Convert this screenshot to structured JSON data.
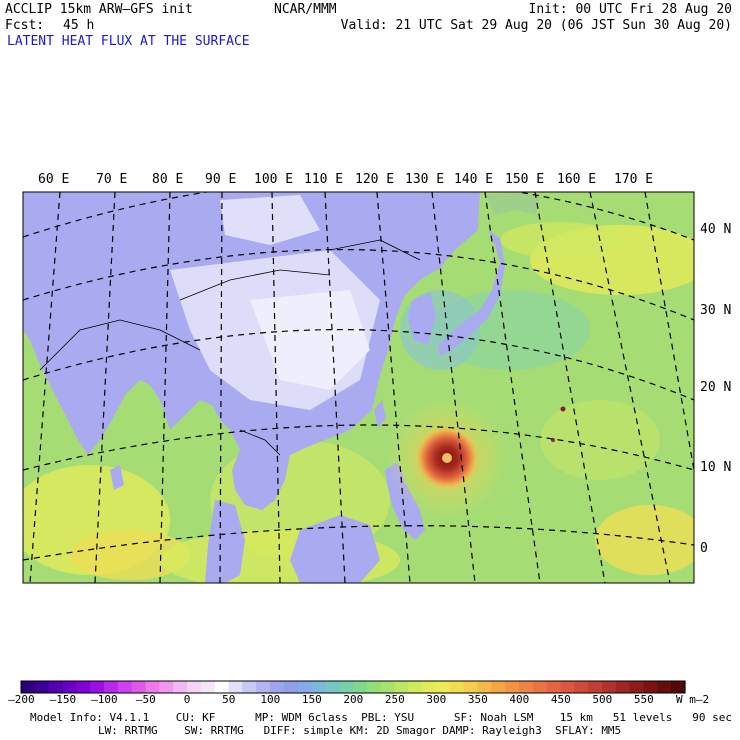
{
  "header": {
    "model": "ACCLIP 15km ARW–GFS init",
    "fcst_label": "Fcst:",
    "fcst_value": "45 h",
    "org": "NCAR/MMM",
    "init": "Init: 00 UTC Fri 28 Aug 20",
    "valid": "Valid: 21 UTC Sat 29 Aug 20 (06 JST Sun 30 Aug 20)",
    "field": "LATENT HEAT FLUX AT THE SURFACE"
  },
  "map": {
    "lon_labels": [
      "60 E",
      "70 E",
      "80 E",
      "90 E",
      "100 E",
      "110 E",
      "120 E",
      "130 E",
      "140 E",
      "150 E",
      "160 E",
      "170 E"
    ],
    "lat_labels": [
      "40 N",
      "30 N",
      "20 N",
      "10 N",
      "0"
    ]
  },
  "colorbar": {
    "tick_labels": [
      "–200",
      "–150",
      "–100",
      "–50",
      "0",
      "50",
      "100",
      "150",
      "200",
      "250",
      "300",
      "350",
      "400",
      "450",
      "500",
      "550"
    ],
    "units": "W m–2",
    "colors": [
      "#2a0077",
      "#3d0094",
      "#5300ad",
      "#6a00c4",
      "#8000d8",
      "#9a10e4",
      "#b828ec",
      "#d040f0",
      "#e058e8",
      "#ec78ec",
      "#f098ee",
      "#f4b8f2",
      "#f6d4f4",
      "#f4e6f4",
      "#ffffff",
      "#e0e0f8",
      "#c8c8f4",
      "#b4b4f0",
      "#a0a4ec",
      "#8ea0ec",
      "#84aaec",
      "#7cb8dc",
      "#78c6c4",
      "#78d0a8",
      "#80d88c",
      "#94de78",
      "#a8e26c",
      "#bce664",
      "#d0ea5e",
      "#e2ec58",
      "#eeea54",
      "#f4dc50",
      "#f6cc4c",
      "#f6ba48",
      "#f4a644",
      "#f29444",
      "#ee8444",
      "#ea7444",
      "#e46444",
      "#dc5640",
      "#d04a3a",
      "#c23e34",
      "#b2322c",
      "#a02624",
      "#8c1c1c",
      "#781414",
      "#640e0e",
      "#500808"
    ]
  },
  "footer": {
    "line1": "Model Info: V4.1.1    CU: KF      MP: WDM 6class  PBL: YSU      SF: Noah LSM    15 km   51 levels   90 sec",
    "line2": "LW: RRTMG    SW: RRTMG   DIFF: simple KM: 2D Smagor DAMP: Rayleigh3  SFLAY: MM5"
  }
}
